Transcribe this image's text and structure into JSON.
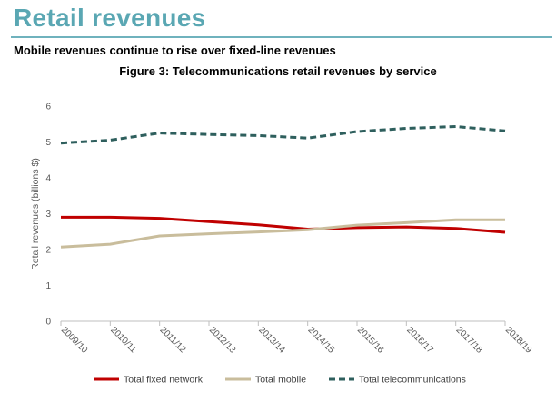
{
  "page": {
    "title": "Retail revenues",
    "subtitle": "Mobile revenues continue to rise over fixed-line revenues"
  },
  "chart_data": {
    "type": "line",
    "title": "Figure 3: Telecommunications retail revenues by service",
    "xlabel": "",
    "ylabel": "Retail revenues (billions $)",
    "ylim": [
      0,
      6
    ],
    "yticks": [
      0,
      1,
      2,
      3,
      4,
      5,
      6
    ],
    "grid": false,
    "legend_position": "bottom",
    "categories": [
      "2009/10",
      "2010/11",
      "2011/12",
      "2012/13",
      "2013/14",
      "2014/15",
      "2015/16",
      "2016/17",
      "2017/18",
      "2018/19"
    ],
    "series": [
      {
        "name": "Total fixed network",
        "color": "#c00000",
        "style": "solid",
        "values": [
          2.9,
          2.9,
          2.87,
          2.78,
          2.69,
          2.57,
          2.61,
          2.63,
          2.59,
          2.48
        ]
      },
      {
        "name": "Total mobile",
        "color": "#c9bd9c",
        "style": "solid",
        "values": [
          2.07,
          2.15,
          2.38,
          2.44,
          2.49,
          2.55,
          2.68,
          2.75,
          2.83,
          2.83
        ]
      },
      {
        "name": "Total telecommunications",
        "color": "#2e5f5d",
        "style": "dashed",
        "values": [
          4.97,
          5.05,
          5.25,
          5.21,
          5.18,
          5.11,
          5.29,
          5.38,
          5.43,
          5.31
        ]
      }
    ]
  }
}
